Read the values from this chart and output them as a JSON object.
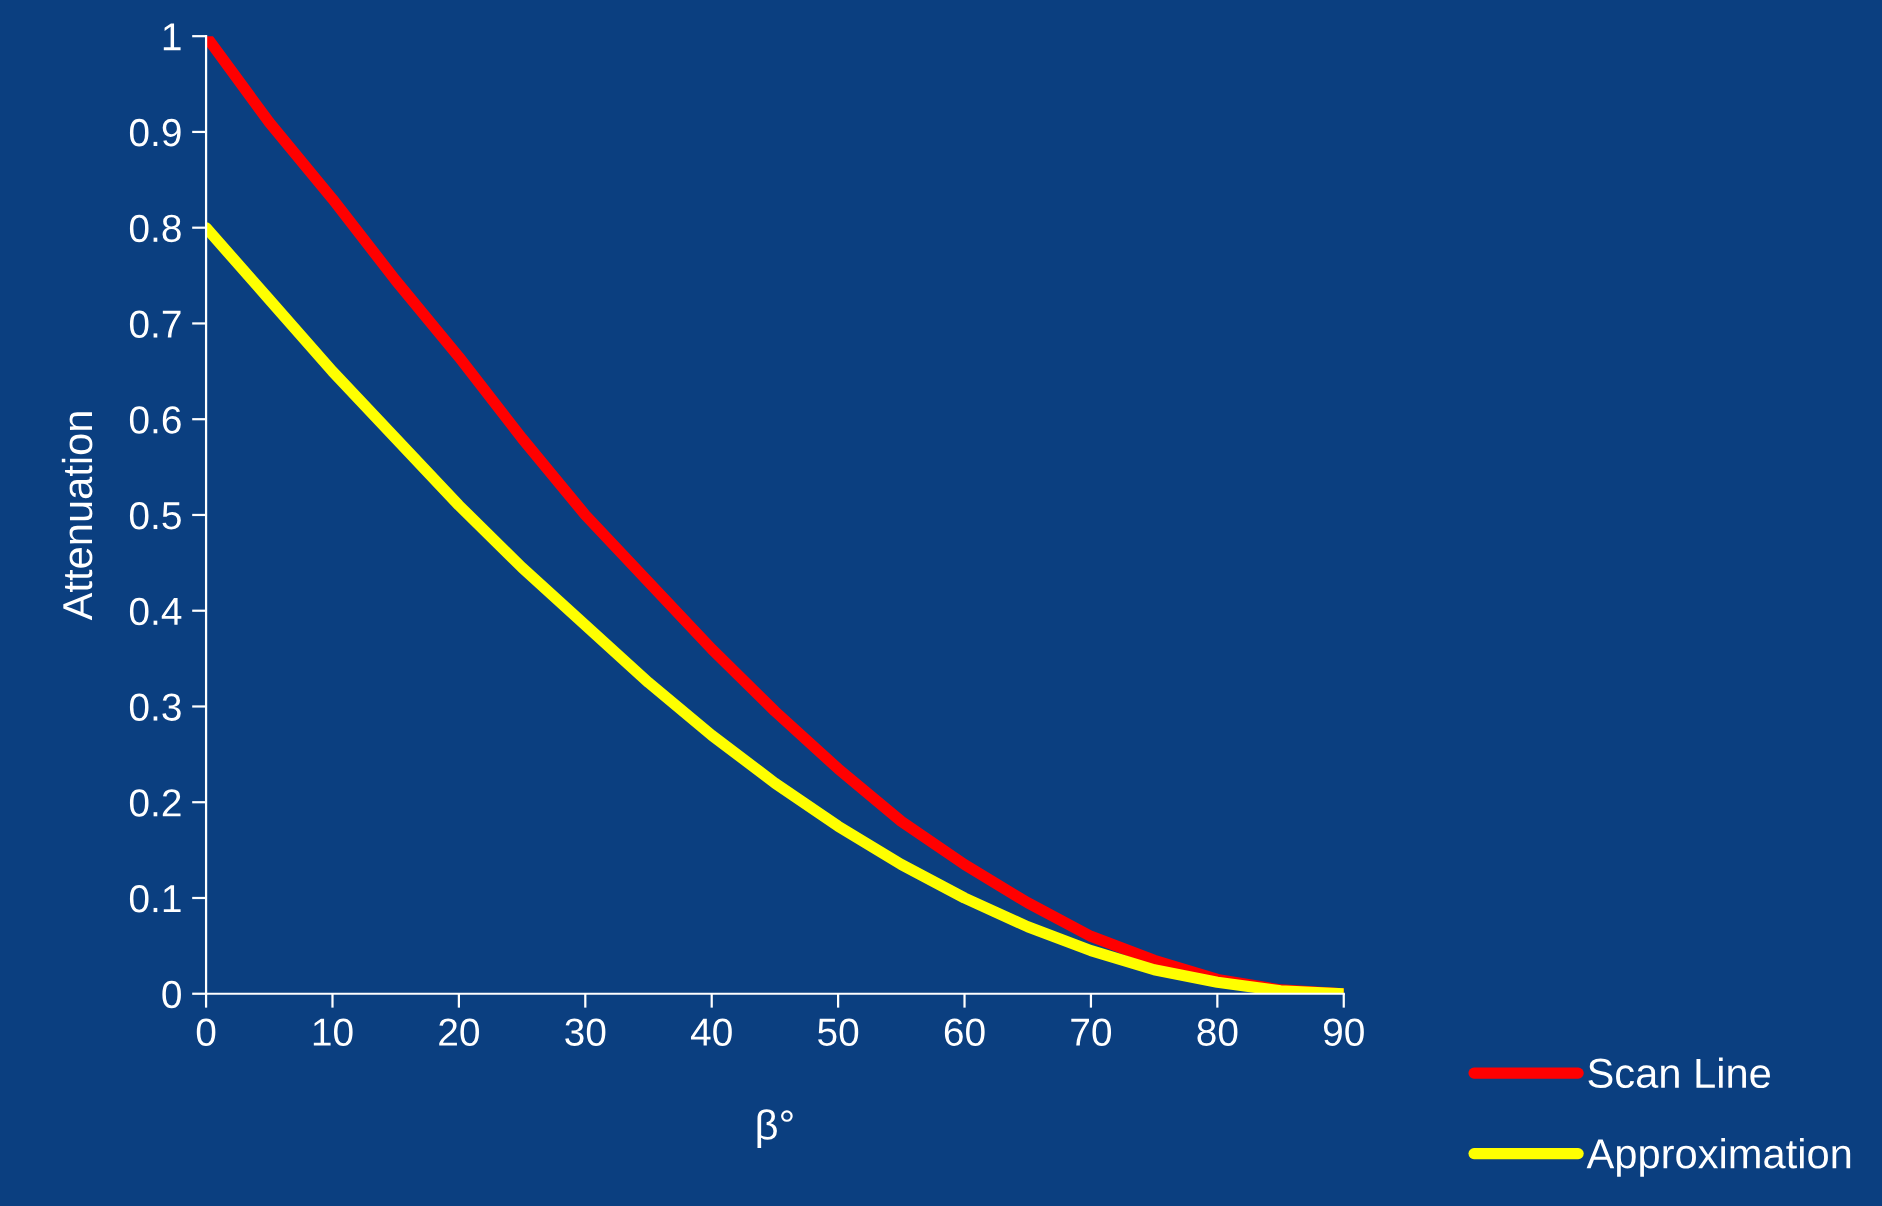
{
  "chart_data": {
    "type": "line",
    "xlabel": "β°",
    "ylabel": "Attenuation",
    "x": [
      0,
      5,
      10,
      15,
      20,
      25,
      30,
      35,
      40,
      45,
      50,
      55,
      60,
      65,
      70,
      75,
      80,
      85,
      90
    ],
    "series": [
      {
        "name": "Scan Line",
        "color": "#ff0000",
        "values": [
          1,
          0.91,
          0.83,
          0.745,
          0.665,
          0.58,
          0.5,
          0.43,
          0.36,
          0.295,
          0.235,
          0.18,
          0.135,
          0.095,
          0.06,
          0.035,
          0.015,
          0.004,
          0
        ]
      },
      {
        "name": "Approximation",
        "color": "#ffff00",
        "values": [
          0.8,
          0.725,
          0.65,
          0.58,
          0.51,
          0.445,
          0.385,
          0.325,
          0.27,
          0.22,
          0.175,
          0.135,
          0.1,
          0.07,
          0.045,
          0.025,
          0.012,
          0.003,
          0
        ]
      }
    ],
    "xlim": [
      0,
      90
    ],
    "xticks": [
      0,
      10,
      20,
      30,
      40,
      50,
      60,
      70,
      80,
      90
    ],
    "ylim": [
      0,
      1
    ],
    "yticks": [
      0,
      0.1,
      0.2,
      0.3,
      0.4,
      0.5,
      0.6,
      0.7,
      0.8,
      0.9,
      1
    ],
    "grid": false,
    "legend": "bottom right",
    "marker": "none",
    "line_style": "solid"
  }
}
